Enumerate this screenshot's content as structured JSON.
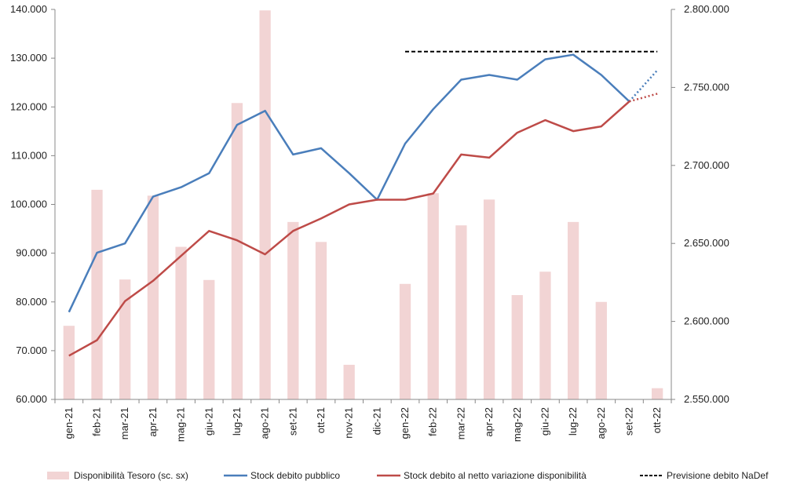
{
  "chart_data": {
    "type": "bar",
    "categories": [
      "gen-21",
      "feb-21",
      "mar-21",
      "apr-21",
      "mag-21",
      "giu-21",
      "lug-21",
      "ago-21",
      "set-21",
      "ott-21",
      "nov-21",
      "dic-21",
      "gen-22",
      "feb-22",
      "mar-22",
      "apr-22",
      "mag-22",
      "giu-22",
      "lug-22",
      "ago-22",
      "set-22",
      "ott-22"
    ],
    "left_axis": {
      "ylim": [
        60000,
        140000
      ],
      "ticks": [
        "60.000",
        "70.000",
        "80.000",
        "90.000",
        "100.000",
        "110.000",
        "120.000",
        "130.000",
        "140.000"
      ]
    },
    "right_axis": {
      "ylim": [
        2550000,
        2800000
      ],
      "ticks": [
        "2.550.000",
        "2.600.000",
        "2.650.000",
        "2.700.000",
        "2.750.000",
        "2.800.000"
      ]
    },
    "series": [
      {
        "name": "Disponibilità Tesoro (sc. sx)",
        "type": "bar",
        "axis": "left",
        "color": "#f2d4d4",
        "values": [
          75100,
          103000,
          84600,
          101800,
          91300,
          84500,
          120800,
          139800,
          96400,
          92300,
          67100,
          null,
          83700,
          102300,
          95700,
          101000,
          81400,
          86200,
          96400,
          80000,
          null,
          62300
        ]
      },
      {
        "name": "Stock debito pubblico",
        "type": "line",
        "axis": "right",
        "color": "#4a7ebb",
        "values": [
          2606000,
          2644000,
          2650000,
          2680000,
          2686000,
          2695000,
          2726000,
          2735000,
          2707000,
          2711000,
          2695000,
          2678000,
          2714000,
          2736000,
          2755000,
          2758000,
          2755000,
          2768000,
          2771000,
          2758000,
          2741000,
          null
        ],
        "forecast": [
          null,
          null,
          null,
          null,
          null,
          null,
          null,
          null,
          null,
          null,
          null,
          null,
          null,
          null,
          null,
          null,
          null,
          null,
          null,
          null,
          2741000,
          2761000
        ]
      },
      {
        "name": "Stock debito al netto variazione disponibilità",
        "type": "line",
        "axis": "right",
        "color": "#be4b48",
        "values": [
          2578000,
          2588000,
          2613000,
          2626000,
          2642000,
          2658000,
          2652000,
          2643000,
          2658000,
          2666000,
          2675000,
          2678000,
          2678000,
          2682000,
          2707000,
          2705000,
          2721000,
          2729000,
          2722000,
          2725000,
          2741000,
          null
        ],
        "forecast": [
          null,
          null,
          null,
          null,
          null,
          null,
          null,
          null,
          null,
          null,
          null,
          null,
          null,
          null,
          null,
          null,
          null,
          null,
          null,
          null,
          2741000,
          2746000
        ]
      },
      {
        "name": "Previsione debito NaDef",
        "type": "line",
        "axis": "right",
        "color": "#000000",
        "dash": true,
        "values": [
          null,
          null,
          null,
          null,
          null,
          null,
          null,
          null,
          null,
          null,
          null,
          null,
          2773000,
          2773000,
          2773000,
          2773000,
          2773000,
          2773000,
          2773000,
          2773000,
          2773000,
          2773000
        ]
      }
    ],
    "grid": false,
    "legend_position": "bottom"
  }
}
